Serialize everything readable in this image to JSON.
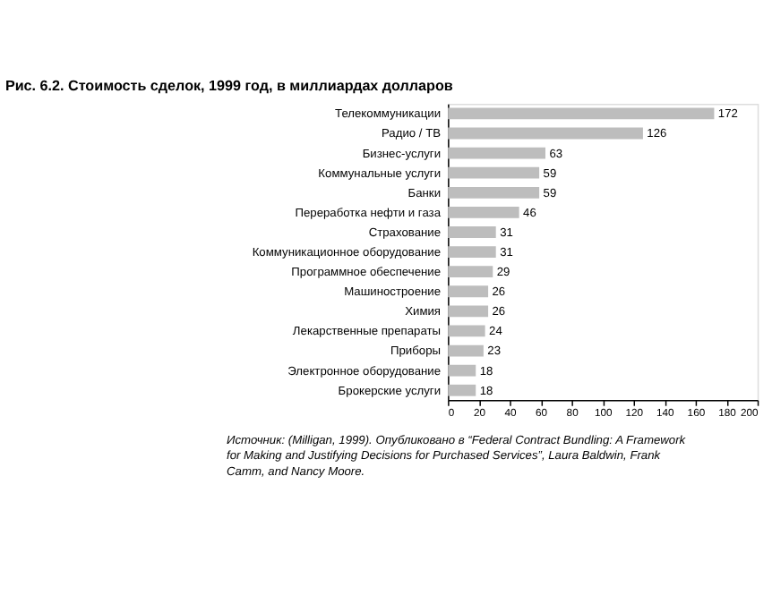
{
  "chart_data": {
    "type": "bar",
    "orientation": "horizontal",
    "title": "Рис. 6.2. Стоимость сделок, 1999 год, в миллиардах долларов",
    "categories": [
      "Телекоммуникации",
      "Радио / ТВ",
      "Бизнес-услуги",
      "Коммунальные услуги",
      "Банки",
      "Переработка нефти и газа",
      "Страхование",
      "Коммуникационное оборудование",
      "Программное обеспечение",
      "Машиностроение",
      "Химия",
      "Лекарственные препараты",
      "Приборы",
      "Электронное оборудование",
      "Брокерские услуги"
    ],
    "values": [
      172,
      126,
      63,
      59,
      59,
      46,
      31,
      31,
      29,
      26,
      26,
      24,
      23,
      18,
      18
    ],
    "color": "#bdbdbd",
    "data_labels": true,
    "xlim": [
      0,
      200
    ],
    "xticks": [
      0,
      20,
      40,
      60,
      80,
      100,
      120,
      140,
      160,
      180,
      200
    ],
    "grid": false,
    "annotations": [
      "Источник: (Milligan, 1999). Опубликовано в “Federal Contract Bundling: A Framework for Making and Justifying Decisions for Purchased Services”, Laura Baldwin, Frank Camm, and Nancy Moore."
    ]
  }
}
